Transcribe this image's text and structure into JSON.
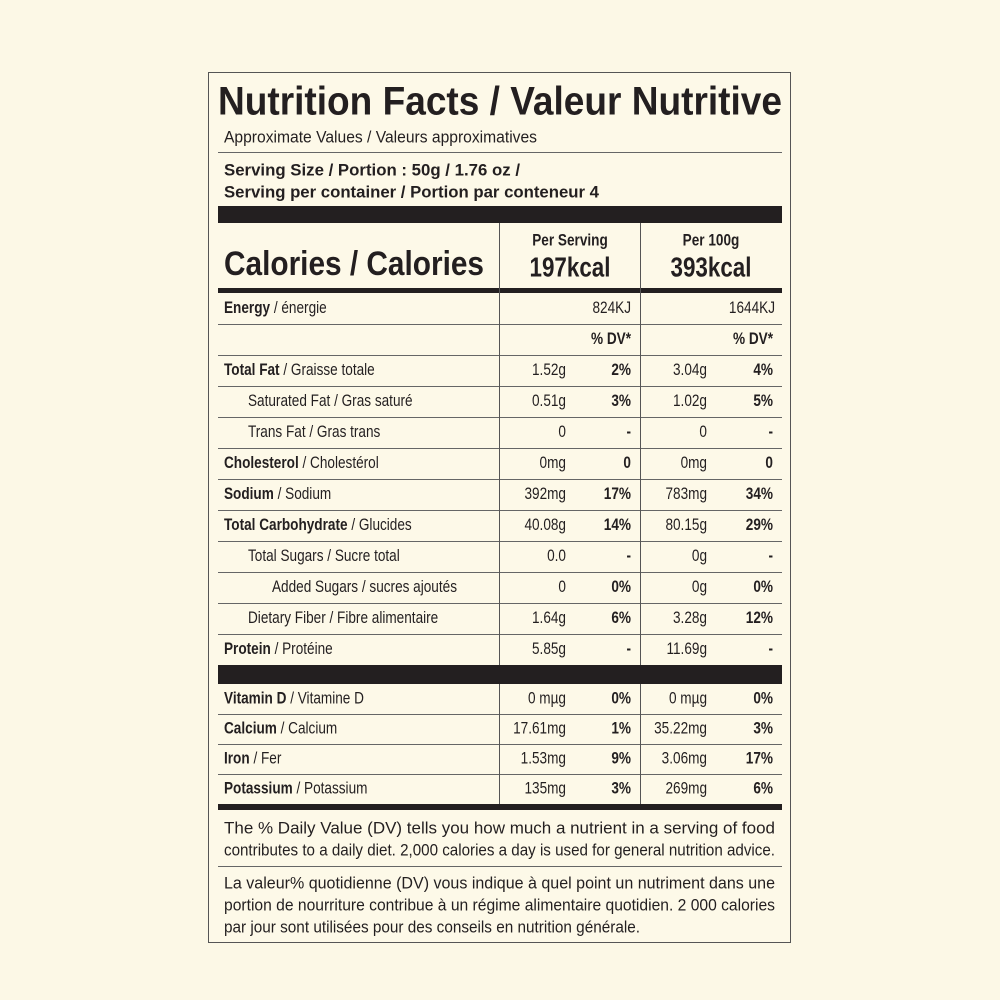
{
  "title": "Nutrition Facts / Valeur Nutritive",
  "subtitle": "Approximate Values / Valeurs approximatives",
  "serving_size": "Serving Size / Portion : 50g / 1.76 oz /",
  "servings_per_container": "Serving per container / Portion par conteneur  4",
  "calories": {
    "label": "Calories / Calories",
    "per_serving": {
      "label": "Per Serving",
      "value": "197kcal"
    },
    "per_100g": {
      "label": "Per 100g",
      "value": "393kcal"
    }
  },
  "energy": {
    "name": "Energy",
    "detail": "/ énergie",
    "serving": "824KJ",
    "per_100g": "1644KJ"
  },
  "dv_header": {
    "serving": "% DV*",
    "per_100g": "% DV*"
  },
  "nutrients": [
    {
      "name": "Total Fat",
      "detail": "/ Graisse totale",
      "serving": "1.52g",
      "serving_dv": "2%",
      "per_100g": "3.04g",
      "per_100g_dv": "4%"
    },
    {
      "label": "Saturated Fat / Gras saturé",
      "serving": "0.51g",
      "serving_dv": "3%",
      "per_100g": "1.02g",
      "per_100g_dv": "5%"
    },
    {
      "label": "Trans Fat / Gras trans",
      "serving": "0",
      "serving_dv": "-",
      "per_100g": "0",
      "per_100g_dv": "-"
    },
    {
      "name": "Cholesterol",
      "detail": "/ Cholestérol",
      "serving": "0mg",
      "serving_dv": "0",
      "per_100g": "0mg",
      "per_100g_dv": "0"
    },
    {
      "name": "Sodium",
      "detail": "/ Sodium",
      "serving": "392mg",
      "serving_dv": "17%",
      "per_100g": "783mg",
      "per_100g_dv": "34%"
    },
    {
      "name": "Total Carbohydrate",
      "detail": "/ Glucides",
      "serving": "40.08g",
      "serving_dv": "14%",
      "per_100g": "80.15g",
      "per_100g_dv": "29%"
    },
    {
      "label": "Total Sugars / Sucre total",
      "serving": "0.0",
      "serving_dv": "-",
      "per_100g": "0g",
      "per_100g_dv": "-"
    },
    {
      "label": "Added Sugars / sucres ajoutés",
      "serving": "0",
      "serving_dv": "0%",
      "per_100g": "0g",
      "per_100g_dv": "0%"
    },
    {
      "label": "Dietary Fiber / Fibre alimentaire",
      "serving": "1.64g",
      "serving_dv": "6%",
      "per_100g": "3.28g",
      "per_100g_dv": "12%"
    },
    {
      "name": "Protein",
      "detail": "/ Protéine",
      "serving": "5.85g",
      "serving_dv": "-",
      "per_100g": "11.69g",
      "per_100g_dv": "-"
    }
  ],
  "vitamins": [
    {
      "name": "Vitamin D",
      "detail": "/ Vitamine D",
      "serving": "0 mµg",
      "serving_dv": "0%",
      "per_100g": "0 mµg",
      "per_100g_dv": "0%"
    },
    {
      "name": "Calcium",
      "detail": "/ Calcium",
      "serving": "17.61mg",
      "serving_dv": "1%",
      "per_100g": "35.22mg",
      "per_100g_dv": "3%"
    },
    {
      "name": "Iron",
      "detail": "/ Fer",
      "serving": "1.53mg",
      "serving_dv": "9%",
      "per_100g": "3.06mg",
      "per_100g_dv": "17%"
    },
    {
      "name": "Potassium",
      "detail": "/ Potassium",
      "serving": "135mg",
      "serving_dv": "3%",
      "per_100g": "269mg",
      "per_100g_dv": "6%"
    }
  ],
  "footnote_en": [
    "The % Daily Value (DV) tells you how much a nutrient in a serving of food",
    "contributes to a daily diet. 2,000 calories a day is used for general nutrition advice."
  ],
  "footnote_fr": [
    "La valeur% quotidienne (DV) vous indique à quel point un nutriment dans une",
    "portion de nourriture contribue à un régime alimentaire quotidien. 2 000 calories",
    "par jour sont utilisées pour des conseils en nutrition générale."
  ]
}
